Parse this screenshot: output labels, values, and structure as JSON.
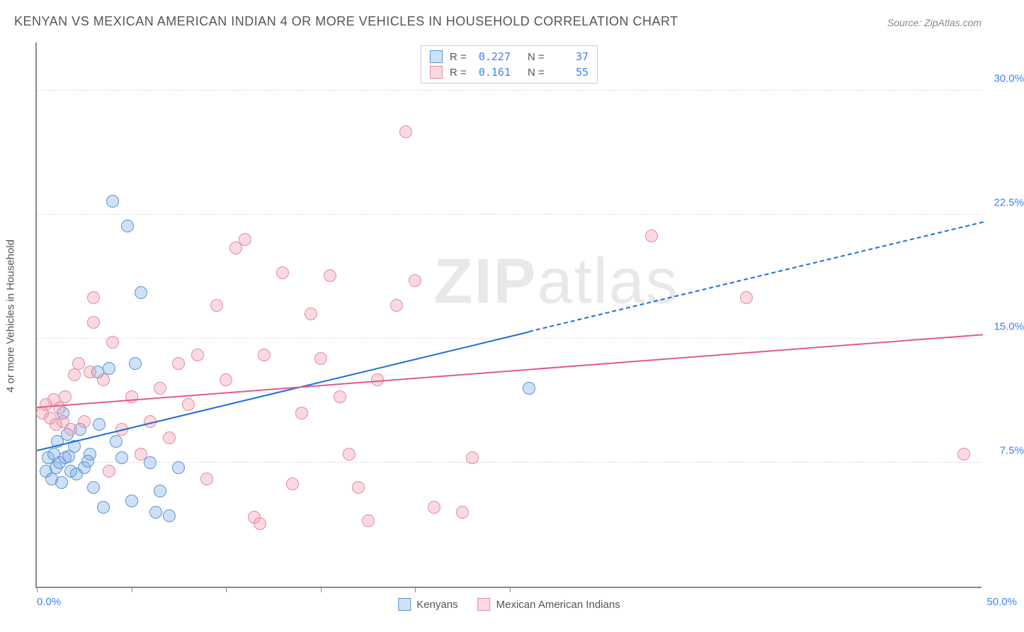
{
  "title": "KENYAN VS MEXICAN AMERICAN INDIAN 4 OR MORE VEHICLES IN HOUSEHOLD CORRELATION CHART",
  "source": "Source: ZipAtlas.com",
  "ylabel": "4 or more Vehicles in Household",
  "watermark": {
    "bold": "ZIP",
    "rest": "atlas"
  },
  "chart": {
    "type": "scatter",
    "xlim": [
      0,
      50
    ],
    "ylim": [
      0,
      33
    ],
    "yTicks": [
      {
        "v": 7.5,
        "label": "7.5%"
      },
      {
        "v": 15.0,
        "label": "15.0%"
      },
      {
        "v": 22.5,
        "label": "22.5%"
      },
      {
        "v": 30.0,
        "label": "30.0%"
      }
    ],
    "yTickColor": "#3b82f6",
    "xTickPositions": [
      0,
      5,
      10,
      15,
      20,
      25
    ],
    "xLabelLeft": "0.0%",
    "xLabelRight": "50.0%",
    "xLabelColor": "#3b82f6",
    "gridColor": "#dddddd",
    "pointRadius": 9,
    "series": [
      {
        "name": "Kenyans",
        "fill": "rgba(120,170,230,0.35)",
        "stroke": "#5a94d6",
        "lineColor": "#1e6fd9",
        "r": 0.227,
        "n": 37,
        "trend": {
          "x1": 0,
          "y1": 8.2,
          "x2": 50,
          "y2": 22.0,
          "solidUntilX": 26
        },
        "points": [
          [
            0.5,
            7.0
          ],
          [
            0.6,
            7.8
          ],
          [
            0.8,
            6.5
          ],
          [
            0.9,
            8.0
          ],
          [
            1.0,
            7.2
          ],
          [
            1.1,
            8.8
          ],
          [
            1.2,
            7.5
          ],
          [
            1.3,
            6.3
          ],
          [
            1.5,
            7.8
          ],
          [
            1.6,
            9.2
          ],
          [
            1.8,
            7.0
          ],
          [
            2.0,
            8.5
          ],
          [
            2.1,
            6.8
          ],
          [
            2.3,
            9.5
          ],
          [
            2.5,
            7.2
          ],
          [
            2.8,
            8.0
          ],
          [
            3.0,
            6.0
          ],
          [
            3.2,
            13.0
          ],
          [
            3.5,
            4.8
          ],
          [
            3.8,
            13.2
          ],
          [
            4.0,
            23.3
          ],
          [
            4.5,
            7.8
          ],
          [
            4.8,
            21.8
          ],
          [
            5.0,
            5.2
          ],
          [
            5.2,
            13.5
          ],
          [
            5.5,
            17.8
          ],
          [
            6.0,
            7.5
          ],
          [
            6.3,
            4.5
          ],
          [
            6.5,
            5.8
          ],
          [
            7.0,
            4.3
          ],
          [
            7.5,
            7.2
          ],
          [
            2.7,
            7.6
          ],
          [
            1.4,
            10.5
          ],
          [
            3.3,
            9.8
          ],
          [
            4.2,
            8.8
          ],
          [
            1.7,
            7.9
          ],
          [
            26.0,
            12.0
          ]
        ]
      },
      {
        "name": "Mexican American Indians",
        "fill": "rgba(240,150,170,0.35)",
        "stroke": "#e38aa0",
        "lineColor": "#e05a8a",
        "r": 0.161,
        "n": 55,
        "trend": {
          "x1": 0,
          "y1": 10.8,
          "x2": 50,
          "y2": 15.2,
          "solidUntilX": 50
        },
        "points": [
          [
            0.3,
            10.5
          ],
          [
            0.5,
            11.0
          ],
          [
            0.7,
            10.2
          ],
          [
            0.9,
            11.3
          ],
          [
            1.0,
            9.8
          ],
          [
            1.2,
            10.8
          ],
          [
            1.4,
            10.0
          ],
          [
            1.5,
            11.5
          ],
          [
            1.8,
            9.5
          ],
          [
            2.0,
            12.8
          ],
          [
            2.2,
            13.5
          ],
          [
            2.5,
            10.0
          ],
          [
            2.8,
            13.0
          ],
          [
            3.0,
            16.0
          ],
          [
            3.0,
            17.5
          ],
          [
            3.5,
            12.5
          ],
          [
            3.8,
            7.0
          ],
          [
            4.0,
            14.8
          ],
          [
            4.5,
            9.5
          ],
          [
            5.0,
            11.5
          ],
          [
            5.5,
            8.0
          ],
          [
            6.0,
            10.0
          ],
          [
            6.5,
            12.0
          ],
          [
            7.0,
            9.0
          ],
          [
            7.5,
            13.5
          ],
          [
            8.0,
            11.0
          ],
          [
            8.5,
            14.0
          ],
          [
            9.0,
            6.5
          ],
          [
            9.5,
            17.0
          ],
          [
            10.0,
            12.5
          ],
          [
            10.5,
            20.5
          ],
          [
            11.0,
            21.0
          ],
          [
            11.5,
            4.2
          ],
          [
            12.0,
            14.0
          ],
          [
            13.0,
            19.0
          ],
          [
            14.0,
            10.5
          ],
          [
            14.5,
            16.5
          ],
          [
            15.0,
            13.8
          ],
          [
            15.5,
            18.8
          ],
          [
            16.0,
            11.5
          ],
          [
            16.5,
            8.0
          ],
          [
            17.0,
            6.0
          ],
          [
            17.5,
            4.0
          ],
          [
            18.0,
            12.5
          ],
          [
            19.0,
            17.0
          ],
          [
            19.5,
            27.5
          ],
          [
            20.0,
            18.5
          ],
          [
            21.0,
            4.8
          ],
          [
            22.5,
            4.5
          ],
          [
            23.0,
            7.8
          ],
          [
            32.5,
            21.2
          ],
          [
            37.5,
            17.5
          ],
          [
            49.0,
            8.0
          ],
          [
            11.8,
            3.8
          ],
          [
            13.5,
            6.2
          ]
        ]
      }
    ]
  },
  "statbox": {
    "rLabel": "R =",
    "nLabel": "N ="
  },
  "legend": {
    "series1": "Kenyans",
    "series2": "Mexican American Indians"
  }
}
